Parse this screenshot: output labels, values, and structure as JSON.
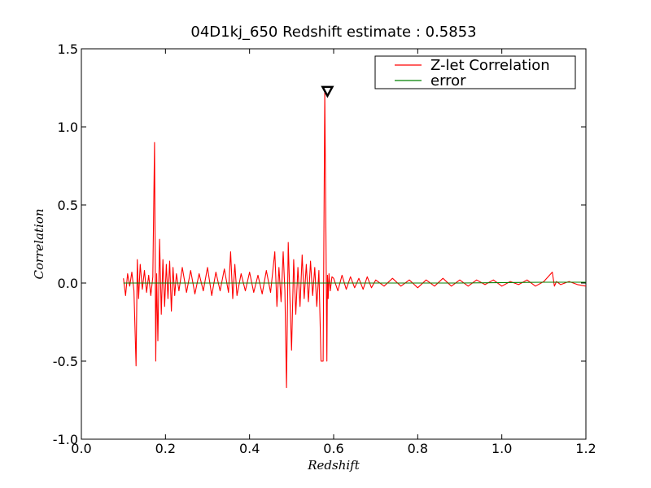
{
  "chart_data": {
    "type": "line",
    "title": "04D1kj_650 Redshift estimate : 0.5853",
    "xlabel": "Redshift",
    "ylabel": "Correlation",
    "xlim": [
      0.0,
      1.2
    ],
    "ylim": [
      -1.0,
      1.5
    ],
    "x_ticks": [
      "0.0",
      "0.2",
      "0.4",
      "0.6",
      "0.8",
      "1.0",
      "1.2"
    ],
    "x_tick_values": [
      0.0,
      0.2,
      0.4,
      0.6,
      0.8,
      1.0,
      1.2
    ],
    "y_ticks": [
      "-1.0",
      "-0.5",
      "0.0",
      "0.5",
      "1.0",
      "1.5"
    ],
    "y_tick_values": [
      -1.0,
      -0.5,
      0.0,
      0.5,
      1.0,
      1.5
    ],
    "grid": false,
    "legend_position": "top-right",
    "colors": {
      "correlation": "#ff0000",
      "error": "#008000"
    },
    "series": [
      {
        "name": "Z-let Correlation",
        "x": [
          0.1,
          0.105,
          0.11,
          0.115,
          0.12,
          0.125,
          0.13,
          0.133,
          0.136,
          0.14,
          0.145,
          0.15,
          0.155,
          0.16,
          0.165,
          0.17,
          0.174,
          0.177,
          0.179,
          0.182,
          0.186,
          0.19,
          0.194,
          0.198,
          0.202,
          0.206,
          0.21,
          0.214,
          0.218,
          0.222,
          0.226,
          0.232,
          0.24,
          0.25,
          0.26,
          0.27,
          0.28,
          0.29,
          0.3,
          0.31,
          0.32,
          0.33,
          0.34,
          0.35,
          0.355,
          0.36,
          0.365,
          0.37,
          0.38,
          0.39,
          0.4,
          0.41,
          0.42,
          0.43,
          0.44,
          0.45,
          0.46,
          0.465,
          0.47,
          0.475,
          0.48,
          0.484,
          0.488,
          0.492,
          0.496,
          0.5,
          0.505,
          0.51,
          0.515,
          0.52,
          0.525,
          0.53,
          0.535,
          0.54,
          0.545,
          0.55,
          0.555,
          0.56,
          0.565,
          0.57,
          0.575,
          0.579,
          0.582,
          0.584,
          0.5853,
          0.587,
          0.589,
          0.592,
          0.596,
          0.6,
          0.61,
          0.62,
          0.63,
          0.64,
          0.65,
          0.66,
          0.67,
          0.68,
          0.69,
          0.7,
          0.72,
          0.74,
          0.76,
          0.78,
          0.8,
          0.82,
          0.84,
          0.86,
          0.88,
          0.9,
          0.92,
          0.94,
          0.96,
          0.98,
          1.0,
          1.02,
          1.04,
          1.06,
          1.08,
          1.1,
          1.12,
          1.125,
          1.13,
          1.14,
          1.16,
          1.18,
          1.2
        ],
        "y": [
          0.03,
          -0.08,
          0.06,
          -0.02,
          0.07,
          -0.05,
          -0.53,
          0.15,
          -0.1,
          0.12,
          -0.04,
          0.08,
          -0.06,
          0.05,
          -0.08,
          0.04,
          0.9,
          -0.5,
          0.06,
          -0.37,
          0.28,
          -0.2,
          0.15,
          -0.15,
          0.12,
          -0.1,
          0.14,
          -0.18,
          0.1,
          -0.08,
          0.06,
          -0.05,
          0.1,
          -0.06,
          0.08,
          -0.07,
          0.06,
          -0.05,
          0.1,
          -0.08,
          0.07,
          -0.05,
          0.09,
          -0.06,
          0.2,
          -0.1,
          0.12,
          -0.08,
          0.06,
          -0.05,
          0.07,
          -0.06,
          0.05,
          -0.07,
          0.08,
          -0.06,
          0.2,
          -0.15,
          0.1,
          -0.12,
          0.2,
          -0.05,
          -0.67,
          0.26,
          -0.1,
          -0.43,
          0.15,
          -0.2,
          0.1,
          -0.15,
          0.18,
          -0.1,
          0.12,
          -0.12,
          0.14,
          -0.08,
          0.1,
          -0.15,
          0.08,
          -0.5,
          -0.5,
          1.22,
          0.2,
          -0.5,
          0.05,
          -0.1,
          0.06,
          -0.05,
          0.04,
          0.03,
          -0.05,
          0.05,
          -0.04,
          0.04,
          -0.03,
          0.03,
          -0.04,
          0.04,
          -0.03,
          0.02,
          -0.02,
          0.03,
          -0.02,
          0.02,
          -0.03,
          0.02,
          -0.02,
          0.03,
          -0.02,
          0.02,
          -0.02,
          0.02,
          -0.01,
          0.02,
          -0.02,
          0.01,
          -0.01,
          0.02,
          -0.02,
          0.01,
          0.07,
          -0.02,
          0.01,
          -0.01,
          0.01,
          -0.01,
          -0.02
        ]
      },
      {
        "name": "error",
        "x": [
          0.1,
          0.3,
          0.5,
          0.7,
          0.9,
          1.1,
          1.2
        ],
        "y": [
          0.0,
          0.0,
          0.0,
          0.0,
          0.0,
          0.005,
          0.005
        ]
      }
    ],
    "annotations": [
      {
        "type": "marker",
        "shape": "triangle-down",
        "x": 0.5853,
        "y": 1.23
      }
    ]
  }
}
